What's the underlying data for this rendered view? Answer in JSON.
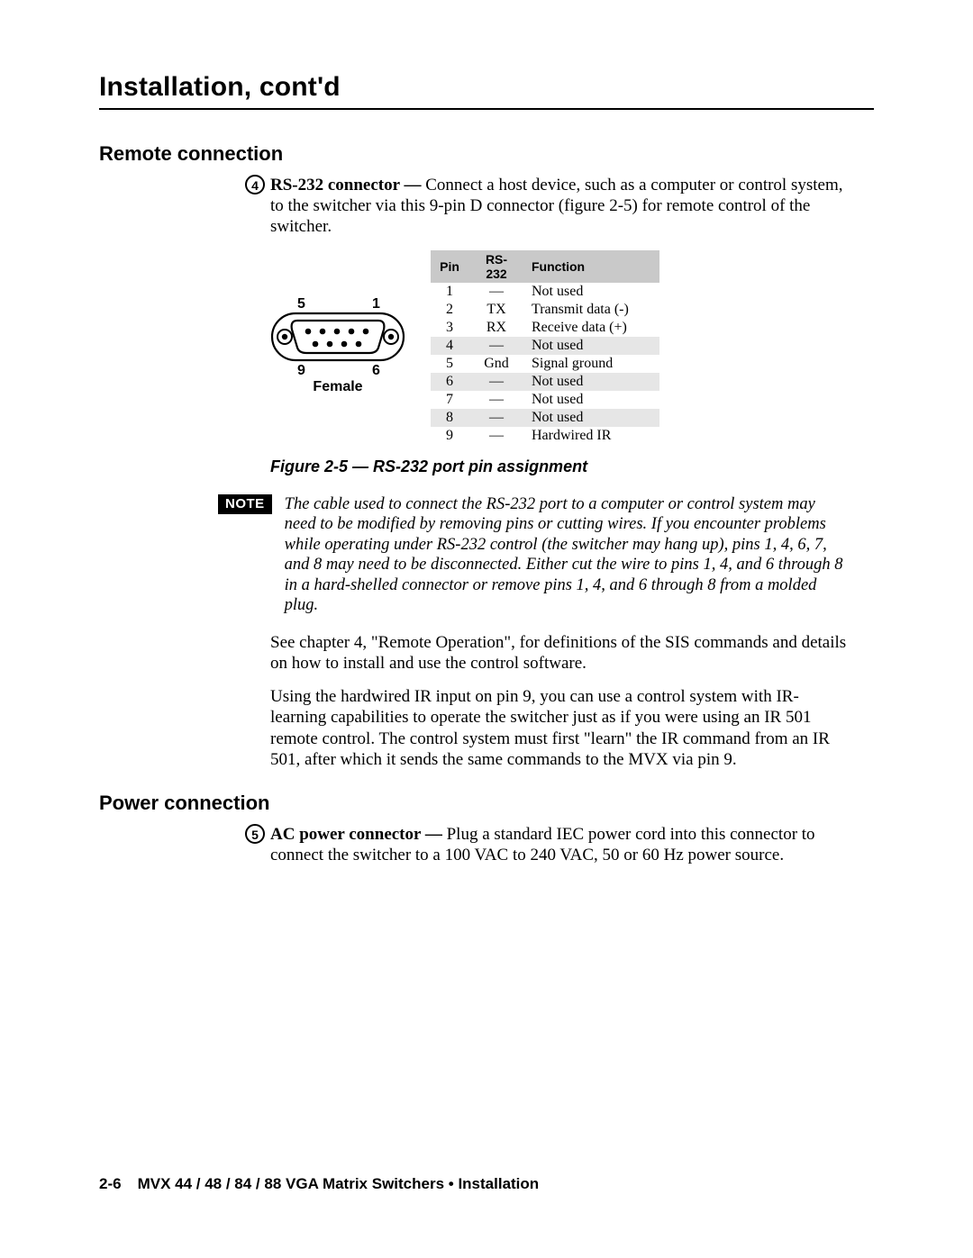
{
  "chapter_title": "Installation, cont'd",
  "section_remote": {
    "title": "Remote connection",
    "item_num": "4",
    "lead_bold": "RS-232 connector —",
    "lead_text": " Connect a host device, such as a computer or control system, to the switcher via this 9-pin D connector (figure 2-5) for remote control of the switcher.",
    "connector": {
      "top_left": "5",
      "top_right": "1",
      "bot_left": "9",
      "bot_right": "6",
      "gender": "Female"
    },
    "table": {
      "headers": [
        "Pin",
        "RS-232",
        "Function"
      ],
      "rows": [
        {
          "pin": "1",
          "rs": "—",
          "fn": "Not used",
          "shade": false
        },
        {
          "pin": "2",
          "rs": "TX",
          "fn": "Transmit data (-)",
          "shade": false
        },
        {
          "pin": "3",
          "rs": "RX",
          "fn": "Receive data (+)",
          "shade": false
        },
        {
          "pin": "4",
          "rs": "—",
          "fn": "Not used",
          "shade": true
        },
        {
          "pin": "5",
          "rs": "Gnd",
          "fn": "Signal ground",
          "shade": false
        },
        {
          "pin": "6",
          "rs": "—",
          "fn": "Not used",
          "shade": true
        },
        {
          "pin": "7",
          "rs": "—",
          "fn": "Not used",
          "shade": false
        },
        {
          "pin": "8",
          "rs": "—",
          "fn": "Not used",
          "shade": true
        },
        {
          "pin": "9",
          "rs": "—",
          "fn": "Hardwired IR",
          "shade": false
        }
      ]
    },
    "fig_caption": "Figure 2-5 — RS-232 port pin assignment",
    "note_badge": "NOTE",
    "note_text": "The cable used to connect the RS-232 port to a computer or control system may need to be modified by removing pins or cutting wires.  If you encounter problems while operating under RS-232 control (the switcher may hang up), pins 1, 4, 6, 7, and 8 may need to be disconnected.  Either cut the wire to pins 1, 4, and 6 through 8 in a hard-shelled connector or remove pins 1, 4, and 6 through 8 from a molded plug.",
    "para2": "See chapter 4, \"Remote Operation\", for definitions of the SIS commands and details on how to install and use the control software.",
    "para3": "Using the hardwired IR input on pin 9, you can use a control system with IR-learning capabilities to operate the switcher just as if you were using an IR 501 remote control.  The control system must first \"learn\" the IR command from an IR 501, after which it sends the same commands to the MVX via pin 9."
  },
  "section_power": {
    "title": "Power connection",
    "item_num": "5",
    "lead_bold": "AC power connector —",
    "lead_text": " Plug a standard IEC power cord into this connector to connect the switcher to a 100 VAC to 240 VAC, 50 or 60 Hz power source."
  },
  "footer": {
    "page_num": "2-6",
    "text": "MVX 44 / 48 / 84 / 88 VGA Matrix Switchers • Installation"
  }
}
